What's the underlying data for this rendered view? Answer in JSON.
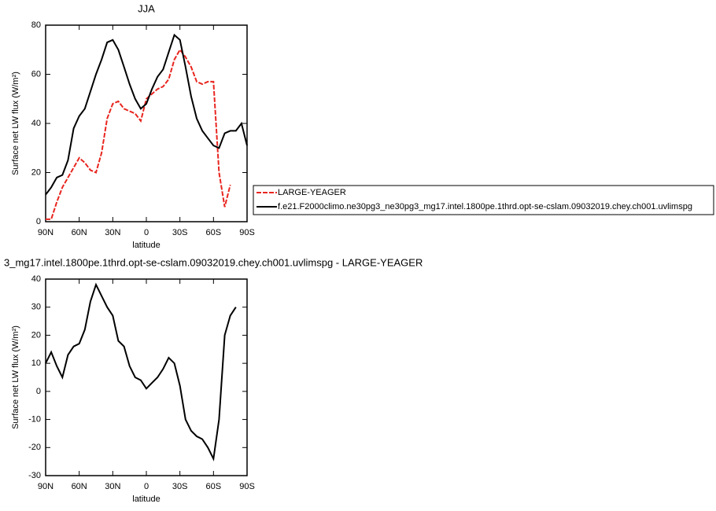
{
  "chart_data": [
    {
      "type": "line",
      "title": "JJA",
      "xlabel": "latitude",
      "ylabel": "Surface net LW flux (W/m²)",
      "x": [
        90,
        85,
        80,
        75,
        70,
        65,
        60,
        55,
        50,
        45,
        40,
        35,
        30,
        25,
        20,
        15,
        10,
        5,
        0,
        -5,
        -10,
        -15,
        -20,
        -25,
        -30,
        -35,
        -40,
        -45,
        -50,
        -55,
        -60,
        -65,
        -70,
        -75,
        -80,
        -85,
        -90
      ],
      "xlim": [
        90,
        -90
      ],
      "xticks": [
        {
          "value": 90,
          "label": "90N"
        },
        {
          "value": 60,
          "label": "60N"
        },
        {
          "value": 30,
          "label": "30N"
        },
        0,
        {
          "value": -30,
          "label": "30S"
        },
        {
          "value": -60,
          "label": "60S"
        },
        {
          "value": -90,
          "label": "90S"
        }
      ],
      "ylim": [
        0,
        80
      ],
      "yticks": [
        0,
        20,
        40,
        60,
        80
      ],
      "legend": "outside-right",
      "series": [
        {
          "name": "LARGE-YEAGER",
          "color": "#e8251f",
          "dash": true,
          "values": [
            1,
            1,
            8,
            14,
            18,
            22,
            26,
            24,
            21,
            20,
            28,
            42,
            48,
            49,
            46,
            45,
            44,
            41,
            50,
            52,
            54,
            55,
            58,
            66,
            70,
            67,
            63,
            57,
            56,
            57,
            57,
            20,
            6,
            15,
            null,
            null,
            null
          ]
        },
        {
          "name": "f.e21.F2000climo.ne30pg3_ne30pg3_mg17.intel.1800pe.1thrd.opt-se-cslam.09032019.chey.ch001.uvlimspg",
          "color": "#000000",
          "dash": false,
          "values": [
            11,
            14,
            18,
            19,
            25,
            38,
            43,
            46,
            53,
            60,
            66,
            73,
            74,
            70,
            63,
            56,
            50,
            46,
            48,
            54,
            59,
            62,
            69,
            76,
            74,
            63,
            51,
            42,
            37,
            34,
            31,
            30,
            36,
            37,
            37,
            40,
            31
          ]
        }
      ]
    },
    {
      "type": "line",
      "title": "3_mg17.intel.1800pe.1thrd.opt-se-cslam.09032019.chey.ch001.uvlimspg - LARGE-YEAGER",
      "xlabel": "latitude",
      "ylabel": "Surface net LW flux (W/m²)",
      "x": [
        90,
        85,
        80,
        75,
        70,
        65,
        60,
        55,
        50,
        45,
        40,
        35,
        30,
        25,
        20,
        15,
        10,
        5,
        0,
        -5,
        -10,
        -15,
        -20,
        -25,
        -30,
        -35,
        -40,
        -45,
        -50,
        -55,
        -60,
        -65,
        -70,
        -75,
        -80,
        -85,
        -90
      ],
      "xlim": [
        90,
        -90
      ],
      "xticks": [
        {
          "value": 90,
          "label": "90N"
        },
        {
          "value": 60,
          "label": "60N"
        },
        {
          "value": 30,
          "label": "30N"
        },
        0,
        {
          "value": -30,
          "label": "30S"
        },
        {
          "value": -60,
          "label": "60S"
        },
        {
          "value": -90,
          "label": "90S"
        }
      ],
      "ylim": [
        -30,
        40
      ],
      "yticks": [
        -30,
        -20,
        -10,
        0,
        10,
        20,
        30,
        40
      ],
      "series": [
        {
          "color": "#000000",
          "dash": false,
          "values": [
            10,
            14,
            9,
            5,
            13,
            16,
            17,
            22,
            32,
            38,
            34,
            30,
            27,
            18,
            16,
            9,
            5,
            4,
            1,
            3,
            5,
            8,
            12,
            10,
            2,
            -10,
            -14,
            -16,
            -17,
            -20,
            -24,
            -10,
            20,
            27,
            30,
            null,
            null
          ]
        }
      ]
    }
  ]
}
